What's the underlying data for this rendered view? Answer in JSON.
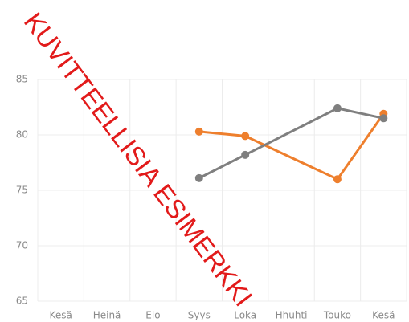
{
  "chart_data": {
    "type": "line",
    "watermark": "KUVITTEELLISIA ESIMERKKI",
    "categories": [
      "Kesä",
      "Heinä",
      "Elo",
      "Syys",
      "Loka",
      "Hhuhti",
      "Touko",
      "Kesä"
    ],
    "series": [
      {
        "color": "#ee7f2d",
        "values": [
          null,
          null,
          null,
          80.3,
          79.9,
          null,
          76.0,
          81.9
        ]
      },
      {
        "color": "#7f7f7f",
        "values": [
          null,
          null,
          null,
          76.1,
          78.2,
          null,
          82.4,
          81.5
        ]
      }
    ],
    "ylim": [
      65,
      85
    ],
    "yticks": [
      65,
      70,
      75,
      80,
      85
    ],
    "grid": true,
    "span_gaps": true
  }
}
